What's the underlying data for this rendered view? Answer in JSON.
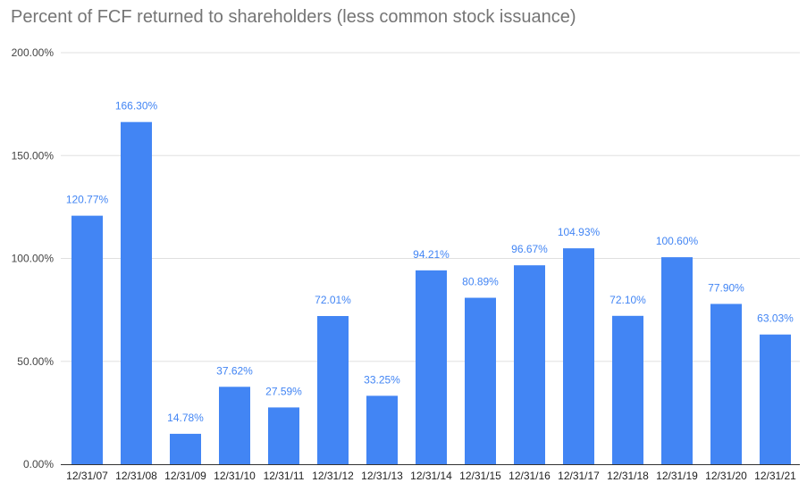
{
  "chart_data": {
    "type": "bar",
    "title": "Percent of FCF returned to shareholders (less common stock issuance)",
    "xlabel": "",
    "ylabel": "",
    "categories": [
      "12/31/07",
      "12/31/08",
      "12/31/09",
      "12/31/10",
      "12/31/11",
      "12/31/12",
      "12/31/13",
      "12/31/14",
      "12/31/15",
      "12/31/16",
      "12/31/17",
      "12/31/18",
      "12/31/19",
      "12/31/20",
      "12/31/21"
    ],
    "values": [
      120.77,
      166.3,
      14.78,
      37.62,
      27.59,
      72.01,
      33.25,
      94.21,
      80.89,
      96.67,
      104.93,
      72.1,
      100.6,
      77.9,
      63.03
    ],
    "data_labels": [
      "120.77%",
      "166.30%",
      "14.78%",
      "37.62%",
      "27.59%",
      "72.01%",
      "33.25%",
      "94.21%",
      "80.89%",
      "96.67%",
      "104.93%",
      "72.10%",
      "100.60%",
      "77.90%",
      "63.03%"
    ],
    "ylim": [
      0,
      200
    ],
    "yticks": [
      0,
      50,
      100,
      150,
      200
    ],
    "ytick_labels": [
      "0.00%",
      "50.00%",
      "100.00%",
      "150.00%",
      "200.00%"
    ],
    "grid": true,
    "legend": "none",
    "colors": {
      "bar": "#4285f4",
      "label": "#4285f4",
      "grid": "#e0e0e0",
      "axis": "#333333"
    }
  }
}
